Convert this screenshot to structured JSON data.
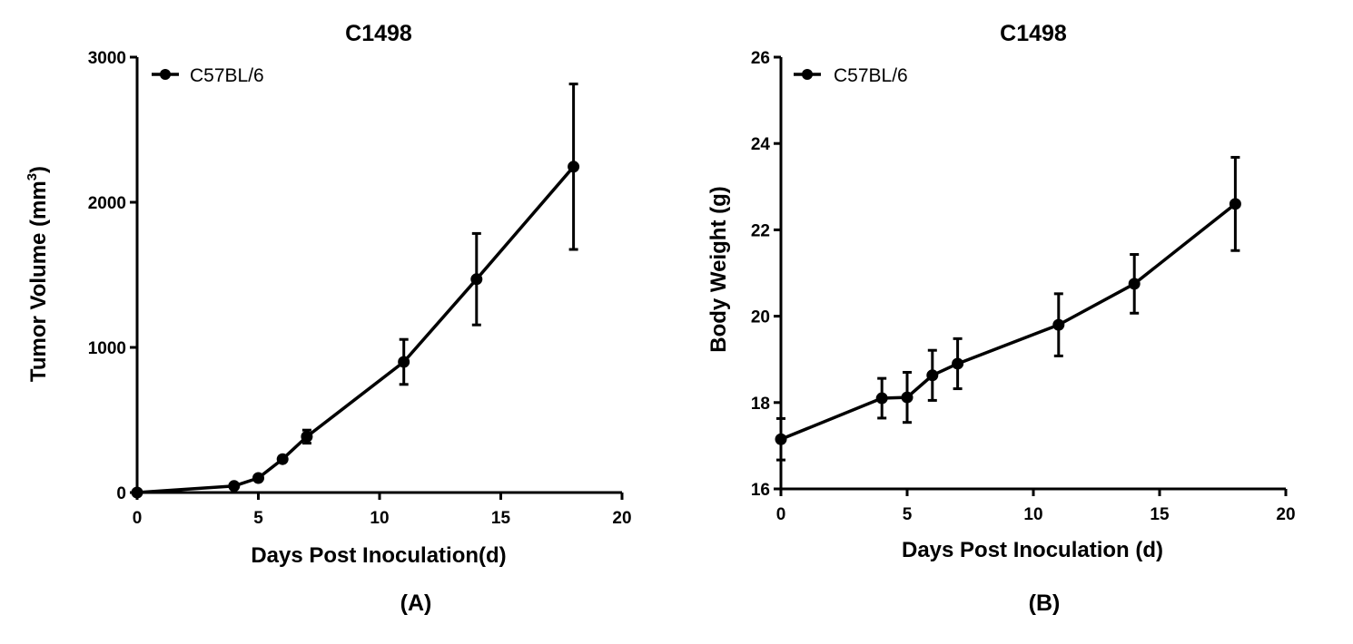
{
  "chart_data": [
    {
      "type": "line",
      "title": "C1498",
      "xlabel": "Days Post Inoculation(d)",
      "ylabel": "Tumor Volume (mm",
      "ylabel_sup": "3",
      "ylabel_end": ")",
      "panel_label": "(A)",
      "xlim": [
        0,
        20
      ],
      "ylim": [
        0,
        3000
      ],
      "xticks": [
        "0",
        "5",
        "10",
        "15",
        "20"
      ],
      "yticks": [
        "0",
        "1000",
        "2000",
        "3000"
      ],
      "legend_position": "top-left",
      "grid": false,
      "series": [
        {
          "name": "C57BL/6",
          "x": [
            0,
            4,
            5,
            6,
            7,
            11,
            14,
            18
          ],
          "y": [
            0,
            45,
            100,
            230,
            385,
            900,
            1470,
            2245
          ],
          "error": [
            0,
            0,
            0,
            0,
            45,
            155,
            315,
            570
          ]
        }
      ]
    },
    {
      "type": "line",
      "title": "C1498",
      "xlabel": "Days Post Inoculation (d)",
      "ylabel": "Body Weight (g)",
      "panel_label": "(B)",
      "xlim": [
        0,
        20
      ],
      "ylim": [
        16,
        26
      ],
      "xticks": [
        "0",
        "5",
        "10",
        "15",
        "20"
      ],
      "yticks": [
        "16",
        "18",
        "20",
        "22",
        "24",
        "26"
      ],
      "legend_position": "top-left",
      "grid": false,
      "series": [
        {
          "name": "C57BL/6",
          "x": [
            0,
            4,
            5,
            6,
            7,
            11,
            14,
            18
          ],
          "y": [
            17.15,
            18.1,
            18.12,
            18.63,
            18.9,
            19.8,
            20.75,
            22.6
          ],
          "error": [
            0.48,
            0.46,
            0.58,
            0.58,
            0.58,
            0.72,
            0.68,
            1.08
          ]
        }
      ]
    }
  ]
}
